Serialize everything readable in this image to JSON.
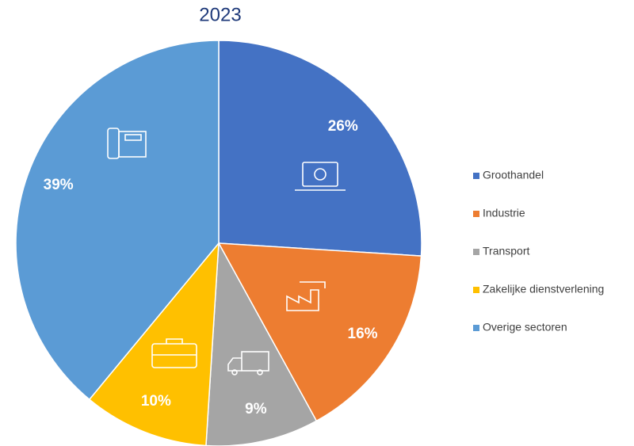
{
  "chart_data": {
    "type": "pie",
    "title": "2023",
    "categories": [
      "Groothandel",
      "Industrie",
      "Transport",
      "Zakelijke dienstverlening",
      "Overige sectoren"
    ],
    "values": [
      26,
      16,
      9,
      10,
      39
    ],
    "value_labels": [
      "26%",
      "16%",
      "9%",
      "10%",
      "39%"
    ],
    "colors": [
      "#4472c4",
      "#ed7d31",
      "#a5a5a5",
      "#ffc000",
      "#5b9bd5"
    ],
    "legend": "right"
  }
}
